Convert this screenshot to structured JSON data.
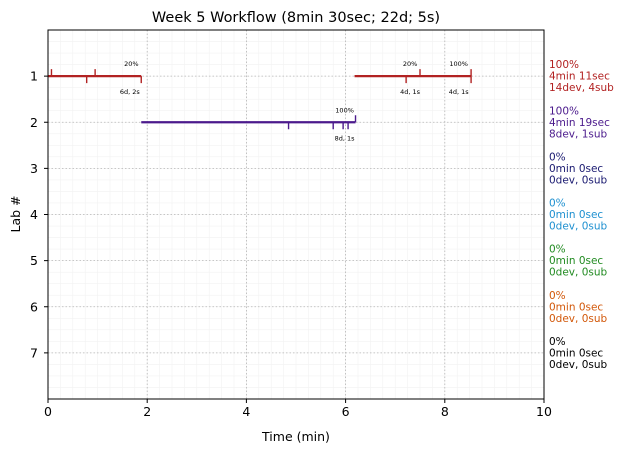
{
  "chart_data": {
    "type": "timeline",
    "title": "Week 5 Workflow (8min 30sec; 22d; 5s)",
    "xlabel": "Time (min)",
    "ylabel": "Lab #",
    "xlim": [
      0,
      10
    ],
    "ylim": [
      0,
      8
    ],
    "x_ticks": [
      "0",
      "2",
      "4",
      "6",
      "8",
      "10"
    ],
    "y_ticks": [
      "1",
      "2",
      "3",
      "4",
      "5",
      "6",
      "7"
    ],
    "grid": true,
    "labs": [
      {
        "lab": 1,
        "color": "#b22222",
        "segments": [
          {
            "start": 0.0,
            "end": 1.88
          },
          {
            "start": 6.18,
            "end": 8.53
          }
        ],
        "up_ticks": [
          0.07,
          0.95,
          7.5,
          8.53
        ],
        "down_ticks": [
          0.78,
          1.88,
          7.22,
          8.53
        ],
        "annotations": [
          {
            "x": 1.68,
            "pos": "above",
            "text": "20%"
          },
          {
            "x": 1.65,
            "pos": "below",
            "text": "6d, 2s"
          },
          {
            "x": 7.3,
            "pos": "above",
            "text": "20%"
          },
          {
            "x": 7.3,
            "pos": "below",
            "text": "4d, 1s"
          },
          {
            "x": 8.28,
            "pos": "above",
            "text": "100%"
          },
          {
            "x": 8.28,
            "pos": "below",
            "text": "4d, 1s"
          }
        ],
        "summary": [
          "100%",
          "4min 11sec",
          "14dev, 4sub"
        ]
      },
      {
        "lab": 2,
        "color": "#4b1a8c",
        "segments": [
          {
            "start": 1.88,
            "end": 6.2
          }
        ],
        "up_ticks": [
          6.2
        ],
        "down_ticks": [
          4.85,
          5.75,
          5.95,
          6.05
        ],
        "annotations": [
          {
            "x": 5.98,
            "pos": "above",
            "text": "100%"
          },
          {
            "x": 5.98,
            "pos": "below",
            "text": "8d, 1s"
          }
        ],
        "summary": [
          "100%",
          "4min 19sec",
          "8dev, 1sub"
        ]
      },
      {
        "lab": 3,
        "color": "#191970",
        "segments": [],
        "up_ticks": [],
        "down_ticks": [],
        "annotations": [],
        "summary": [
          "0%",
          "0min 0sec",
          "0dev, 0sub"
        ]
      },
      {
        "lab": 4,
        "color": "#1e90d0",
        "segments": [],
        "up_ticks": [],
        "down_ticks": [],
        "annotations": [],
        "summary": [
          "0%",
          "0min 0sec",
          "0dev, 0sub"
        ]
      },
      {
        "lab": 5,
        "color": "#228b22",
        "segments": [],
        "up_ticks": [],
        "down_ticks": [],
        "annotations": [],
        "summary": [
          "0%",
          "0min 0sec",
          "0dev, 0sub"
        ]
      },
      {
        "lab": 6,
        "color": "#d2580a",
        "segments": [],
        "up_ticks": [],
        "down_ticks": [],
        "annotations": [],
        "summary": [
          "0%",
          "0min 0sec",
          "0dev, 0sub"
        ]
      },
      {
        "lab": 7,
        "color": "#000000",
        "segments": [],
        "up_ticks": [],
        "down_ticks": [],
        "annotations": [],
        "summary": [
          "0%",
          "0min 0sec",
          "0dev, 0sub"
        ]
      }
    ]
  }
}
